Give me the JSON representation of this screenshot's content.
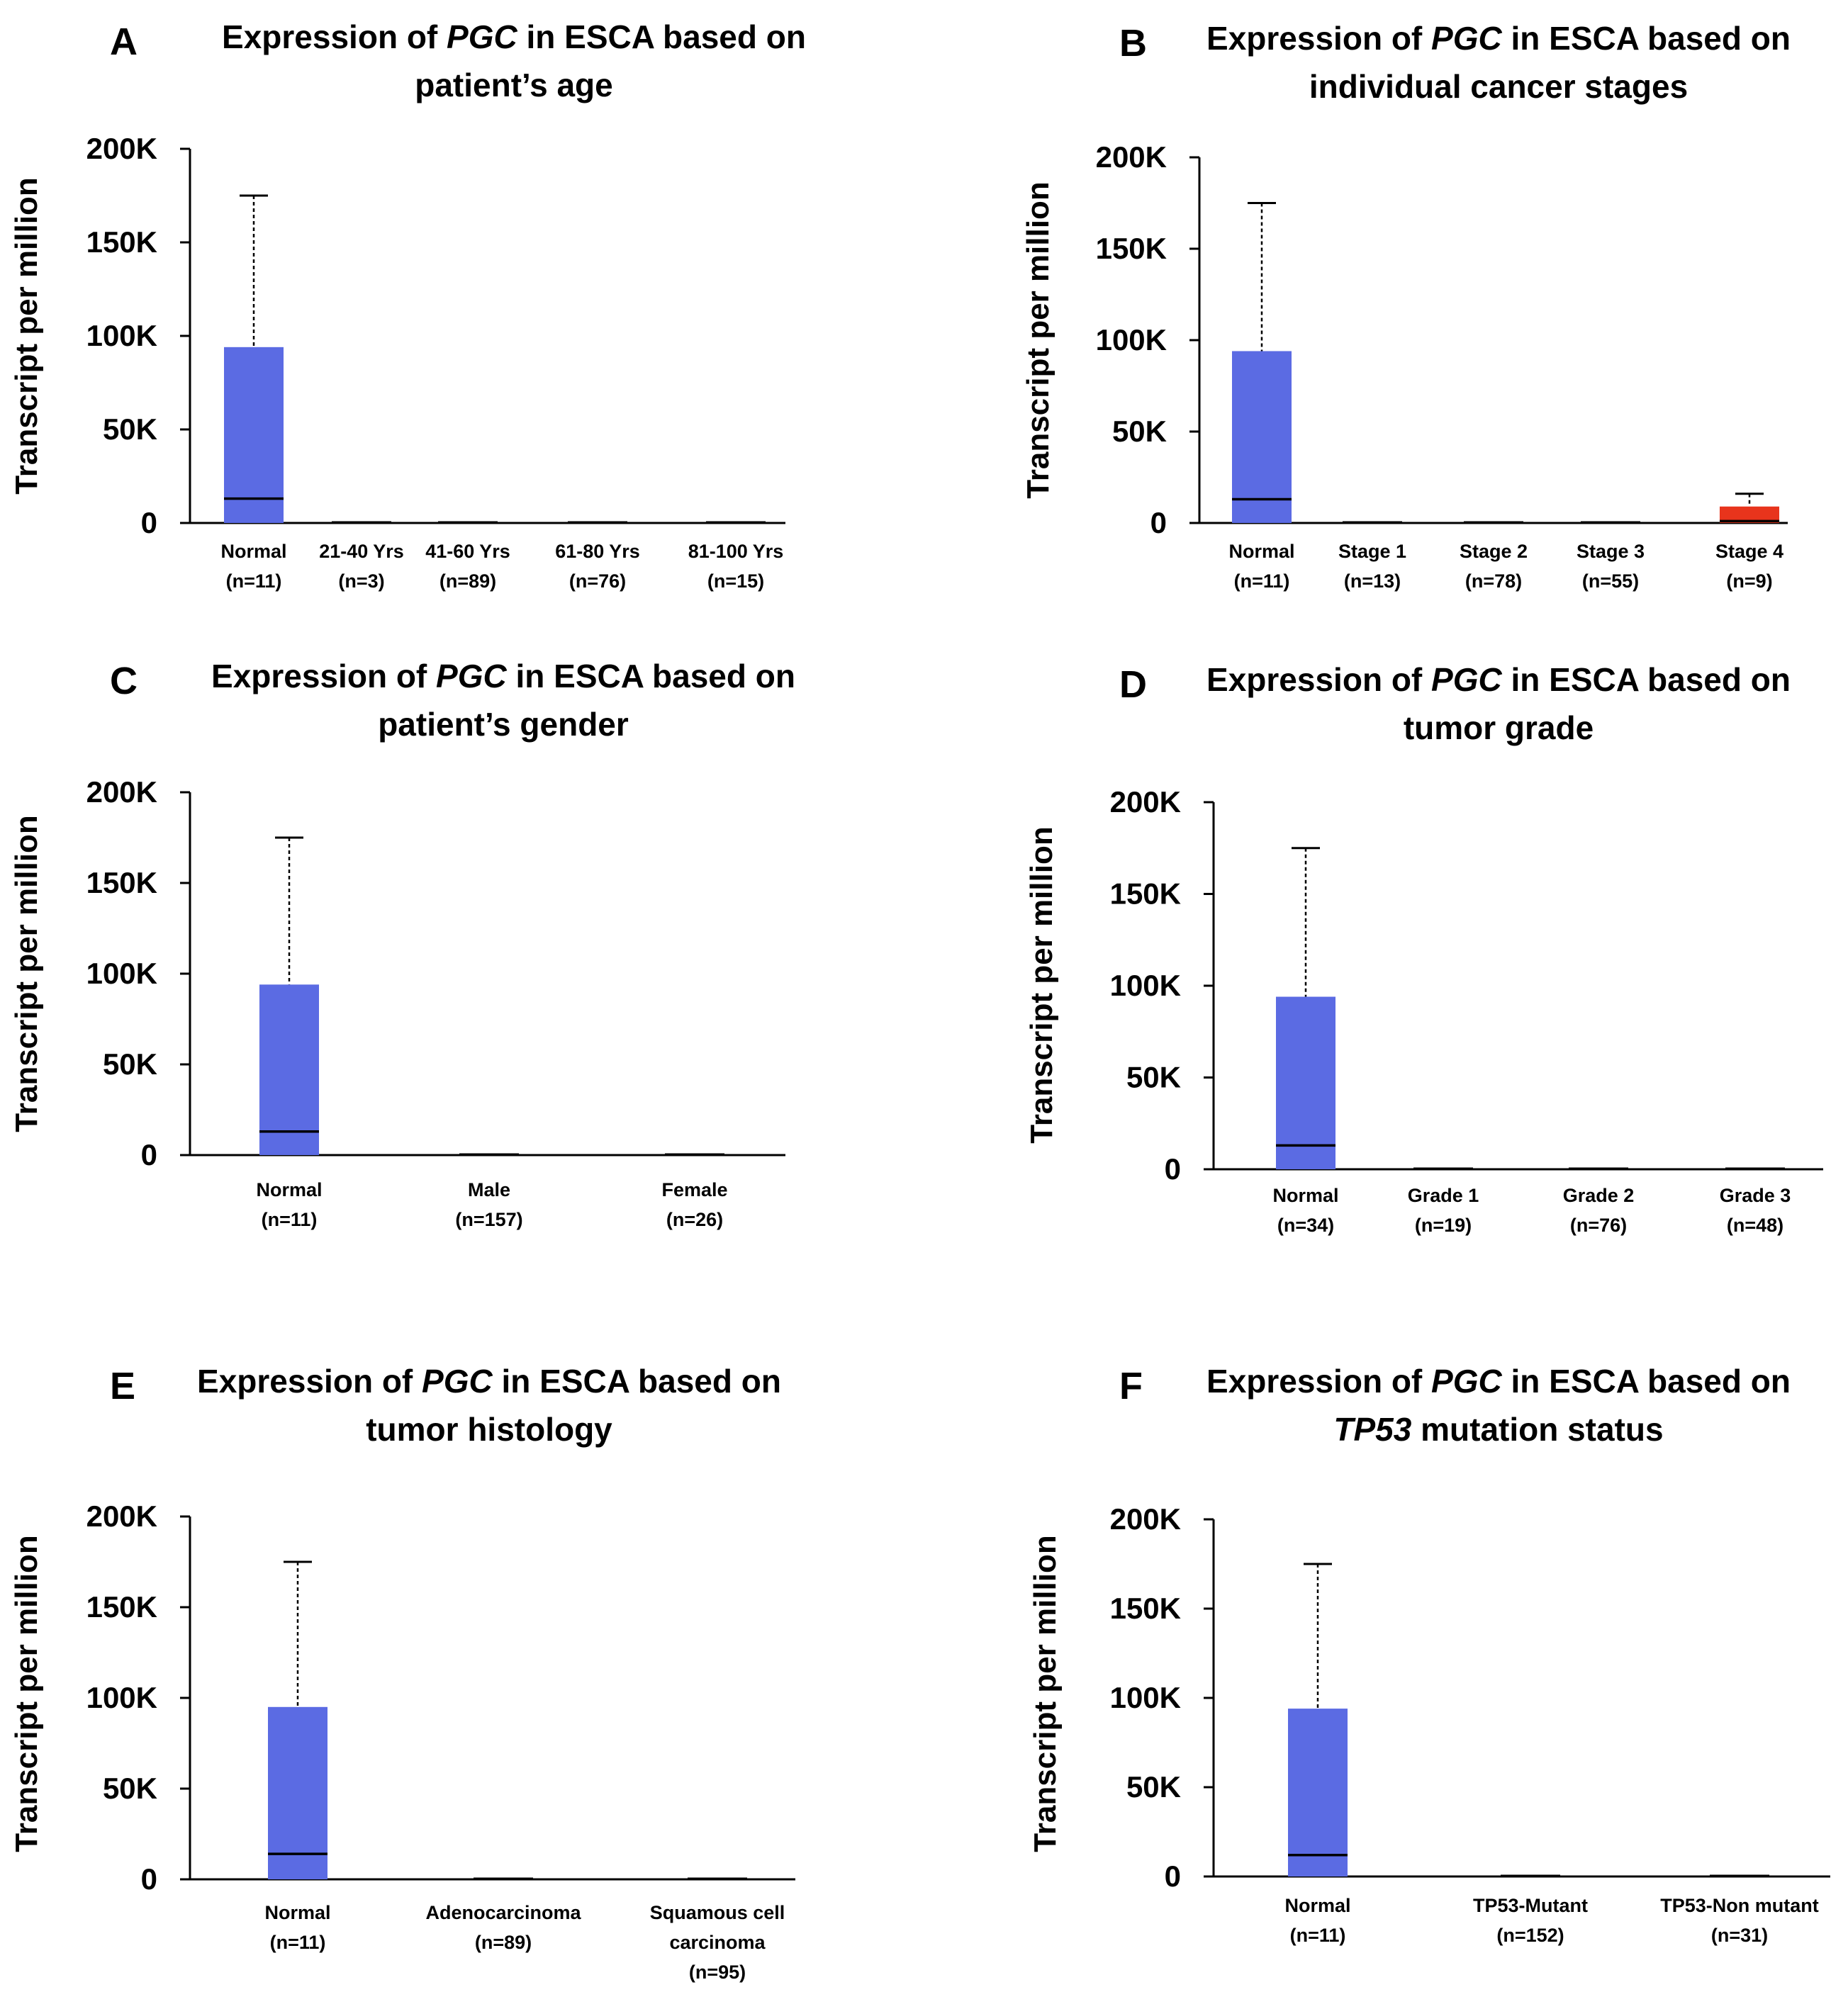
{
  "colors": {
    "normal_box": "#5b6be3",
    "tumor_box": "#e8341c",
    "axis": "#000000"
  },
  "chart_data": [
    {
      "letter": "A",
      "type": "box",
      "title": {
        "pre": "Expression of ",
        "ital": "PGC",
        "post": " in ESCA based on",
        "line2_pre": "",
        "line2_ital": "",
        "line2_post": "patient’s age"
      },
      "ylabel": "Transcript per million",
      "yticks": [
        "200K",
        "150K",
        "100K",
        "50K",
        "0"
      ],
      "ylim": [
        0,
        200000
      ],
      "categories": [
        {
          "label": "Normal",
          "n": "(n=11)",
          "lines": [
            "Normal"
          ]
        },
        {
          "label": "21-40 Yrs",
          "n": "(n=3)",
          "lines": [
            "21-40 Yrs"
          ]
        },
        {
          "label": "41-60 Yrs",
          "n": "(n=89)",
          "lines": [
            "41-60 Yrs"
          ]
        },
        {
          "label": "61-80 Yrs",
          "n": "(n=76)",
          "lines": [
            "61-80 Yrs"
          ]
        },
        {
          "label": "81-100 Yrs",
          "n": "(n=15)",
          "lines": [
            "81-100 Yrs"
          ]
        }
      ],
      "boxes": [
        {
          "q1": 0,
          "median": 13000,
          "q3": 94000,
          "whisker_high": 175000,
          "color": "normal"
        },
        {
          "q1": 0,
          "median": 100,
          "q3": 300,
          "whisker_high": 500,
          "color": "tumor"
        },
        {
          "q1": 0,
          "median": 100,
          "q3": 300,
          "whisker_high": 500,
          "color": "tumor"
        },
        {
          "q1": 0,
          "median": 100,
          "q3": 300,
          "whisker_high": 500,
          "color": "tumor"
        },
        {
          "q1": 0,
          "median": 100,
          "q3": 300,
          "whisker_high": 500,
          "color": "tumor"
        }
      ]
    },
    {
      "letter": "B",
      "type": "box",
      "title": {
        "pre": "Expression of ",
        "ital": "PGC",
        "post": " in ESCA based on",
        "line2_pre": "",
        "line2_ital": "",
        "line2_post": "individual cancer stages"
      },
      "ylabel": "Transcript per million",
      "yticks": [
        "200K",
        "150K",
        "100K",
        "50K",
        "0"
      ],
      "ylim": [
        0,
        200000
      ],
      "categories": [
        {
          "label": "Normal",
          "n": "(n=11)",
          "lines": [
            "Normal"
          ]
        },
        {
          "label": "Stage 1",
          "n": "(n=13)",
          "lines": [
            "Stage 1"
          ]
        },
        {
          "label": "Stage 2",
          "n": "(n=78)",
          "lines": [
            "Stage 2"
          ]
        },
        {
          "label": "Stage 3",
          "n": "(n=55)",
          "lines": [
            "Stage 3"
          ]
        },
        {
          "label": "Stage 4",
          "n": "(n=9)",
          "lines": [
            "Stage 4"
          ]
        }
      ],
      "boxes": [
        {
          "q1": 0,
          "median": 13000,
          "q3": 94000,
          "whisker_high": 175000,
          "color": "normal"
        },
        {
          "q1": 0,
          "median": 100,
          "q3": 300,
          "whisker_high": 500,
          "color": "tumor"
        },
        {
          "q1": 0,
          "median": 100,
          "q3": 300,
          "whisker_high": 500,
          "color": "tumor"
        },
        {
          "q1": 0,
          "median": 100,
          "q3": 300,
          "whisker_high": 500,
          "color": "tumor"
        },
        {
          "q1": 0,
          "median": 1000,
          "q3": 9000,
          "whisker_high": 16000,
          "color": "tumor"
        }
      ]
    },
    {
      "letter": "C",
      "type": "box",
      "title": {
        "pre": "Expression of ",
        "ital": "PGC",
        "post": " in ESCA based on",
        "line2_pre": "",
        "line2_ital": "",
        "line2_post": "patient’s gender"
      },
      "ylabel": "Transcript per million",
      "yticks": [
        "200K",
        "150K",
        "100K",
        "50K",
        "0"
      ],
      "ylim": [
        0,
        200000
      ],
      "categories": [
        {
          "label": "Normal",
          "n": "(n=11)",
          "lines": [
            "Normal"
          ]
        },
        {
          "label": "Male",
          "n": "(n=157)",
          "lines": [
            "Male"
          ]
        },
        {
          "label": "Female",
          "n": "(n=26)",
          "lines": [
            "Female"
          ]
        }
      ],
      "boxes": [
        {
          "q1": 0,
          "median": 13000,
          "q3": 94000,
          "whisker_high": 175000,
          "color": "normal"
        },
        {
          "q1": 0,
          "median": 100,
          "q3": 300,
          "whisker_high": 500,
          "color": "tumor"
        },
        {
          "q1": 0,
          "median": 100,
          "q3": 300,
          "whisker_high": 500,
          "color": "tumor"
        }
      ]
    },
    {
      "letter": "D",
      "type": "box",
      "title": {
        "pre": "Expression of ",
        "ital": "PGC",
        "post": " in ESCA based on",
        "line2_pre": "",
        "line2_ital": "",
        "line2_post": "tumor grade"
      },
      "ylabel": "Transcript per million",
      "yticks": [
        "200K",
        "150K",
        "100K",
        "50K",
        "0"
      ],
      "ylim": [
        0,
        200000
      ],
      "categories": [
        {
          "label": "Normal",
          "n": "(n=34)",
          "lines": [
            "Normal"
          ]
        },
        {
          "label": "Grade 1",
          "n": "(n=19)",
          "lines": [
            "Grade 1"
          ]
        },
        {
          "label": "Grade 2",
          "n": "(n=76)",
          "lines": [
            "Grade 2"
          ]
        },
        {
          "label": "Grade 3",
          "n": "(n=48)",
          "lines": [
            "Grade 3"
          ]
        }
      ],
      "boxes": [
        {
          "q1": 0,
          "median": 13000,
          "q3": 94000,
          "whisker_high": 175000,
          "color": "normal"
        },
        {
          "q1": 0,
          "median": 100,
          "q3": 300,
          "whisker_high": 500,
          "color": "tumor"
        },
        {
          "q1": 0,
          "median": 100,
          "q3": 300,
          "whisker_high": 500,
          "color": "tumor"
        },
        {
          "q1": 0,
          "median": 100,
          "q3": 300,
          "whisker_high": 500,
          "color": "tumor"
        }
      ]
    },
    {
      "letter": "E",
      "type": "box",
      "title": {
        "pre": "Expression of ",
        "ital": "PGC",
        "post": " in ESCA based on",
        "line2_pre": "",
        "line2_ital": "",
        "line2_post": "tumor histology"
      },
      "ylabel": "Transcript per million",
      "yticks": [
        "200K",
        "150K",
        "100K",
        "50K",
        "0"
      ],
      "ylim": [
        0,
        200000
      ],
      "categories": [
        {
          "label": "Normal",
          "n": "(n=11)",
          "lines": [
            "Normal"
          ]
        },
        {
          "label": "Adenocarcinoma",
          "n": "(n=89)",
          "lines": [
            "Adenocarcinoma"
          ]
        },
        {
          "label": "Squamous cell carcinoma",
          "n": "(n=95)",
          "lines": [
            "Squamous cell",
            "carcinoma"
          ]
        }
      ],
      "boxes": [
        {
          "q1": 0,
          "median": 14000,
          "q3": 95000,
          "whisker_high": 175000,
          "color": "normal"
        },
        {
          "q1": 0,
          "median": 100,
          "q3": 400,
          "whisker_high": 700,
          "color": "tumor"
        },
        {
          "q1": 0,
          "median": 100,
          "q3": 300,
          "whisker_high": 500,
          "color": "tumor"
        }
      ]
    },
    {
      "letter": "F",
      "type": "box",
      "title": {
        "pre": "Expression of ",
        "ital": "PGC",
        "post": " in ESCA based on",
        "line2_pre": "",
        "line2_ital": "TP53",
        "line2_post": " mutation status"
      },
      "ylabel": "Transcript per million",
      "yticks": [
        "200K",
        "150K",
        "100K",
        "50K",
        "0"
      ],
      "ylim": [
        0,
        200000
      ],
      "categories": [
        {
          "label": "Normal",
          "n": "(n=11)",
          "lines": [
            "Normal"
          ]
        },
        {
          "label": "TP53-Mutant",
          "n": "(n=152)",
          "lines": [
            "TP53-Mutant"
          ]
        },
        {
          "label": "TP53-Non mutant",
          "n": "(n=31)",
          "lines": [
            "TP53-Non mutant"
          ]
        }
      ],
      "boxes": [
        {
          "q1": 0,
          "median": 12000,
          "q3": 94000,
          "whisker_high": 175000,
          "color": "normal"
        },
        {
          "q1": 0,
          "median": 100,
          "q3": 300,
          "whisker_high": 500,
          "color": "tumor"
        },
        {
          "q1": 0,
          "median": 100,
          "q3": 300,
          "whisker_high": 500,
          "color": "tumor"
        }
      ]
    }
  ]
}
